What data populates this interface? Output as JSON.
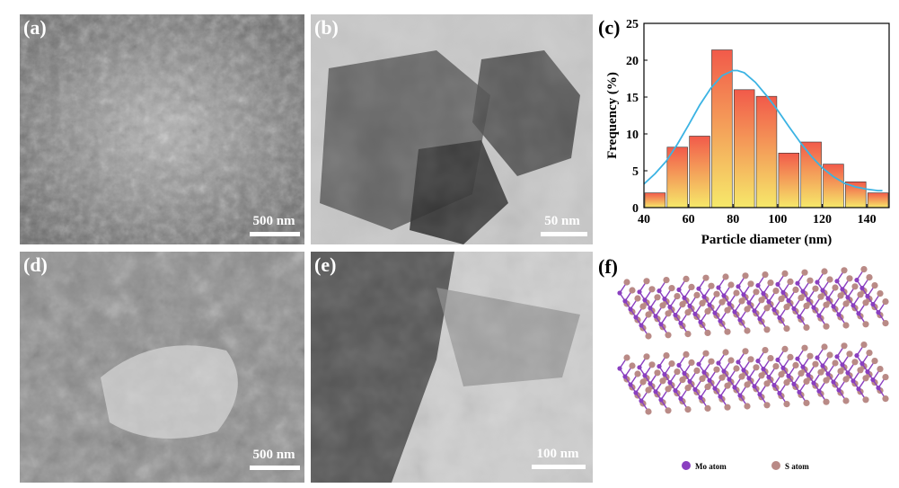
{
  "panels": {
    "a": {
      "label": "(a)",
      "scale": "500 nm"
    },
    "b": {
      "label": "(b)",
      "scale": "50 nm"
    },
    "c": {
      "label": "(c)"
    },
    "d": {
      "label": "(d)",
      "scale": "500 nm"
    },
    "e": {
      "label": "(e)",
      "scale": "100 nm"
    },
    "f": {
      "label": "(f)"
    }
  },
  "legend_f": {
    "mo": "Mo atom",
    "s": "S atom",
    "mo_color": "#8a3fc0",
    "s_color": "#b98a86"
  },
  "chart_data": {
    "type": "bar",
    "xlabel": "Particle diameter (nm)",
    "ylabel": "Frequency (%)",
    "xlim": [
      40,
      150
    ],
    "ylim": [
      0,
      25
    ],
    "xticks": [
      40,
      60,
      80,
      100,
      120,
      140
    ],
    "yticks": [
      0,
      5,
      10,
      15,
      20,
      25
    ],
    "bin_width": 10,
    "bin_centers": [
      45,
      55,
      65,
      75,
      85,
      95,
      105,
      115,
      125,
      135,
      145
    ],
    "values": [
      2.0,
      8.2,
      9.7,
      21.4,
      16.0,
      15.1,
      7.4,
      8.9,
      5.9,
      3.5,
      2.0
    ],
    "fit_curve": {
      "type": "gaussian",
      "x": [
        40,
        45,
        50,
        55,
        60,
        65,
        70,
        75,
        80,
        82,
        85,
        90,
        95,
        100,
        105,
        110,
        115,
        120,
        125,
        130,
        135,
        140,
        145,
        147
      ],
      "y": [
        3.2,
        4.6,
        6.3,
        8.6,
        11.2,
        13.9,
        16.2,
        17.9,
        18.6,
        18.6,
        18.3,
        17.0,
        15.2,
        13.2,
        11.0,
        8.9,
        7.0,
        5.4,
        4.2,
        3.3,
        2.8,
        2.5,
        2.3,
        2.3
      ],
      "color": "#3bb3e3"
    },
    "bar_gradient": [
      "#f25a4a",
      "#f6e96a"
    ],
    "grid": false
  }
}
